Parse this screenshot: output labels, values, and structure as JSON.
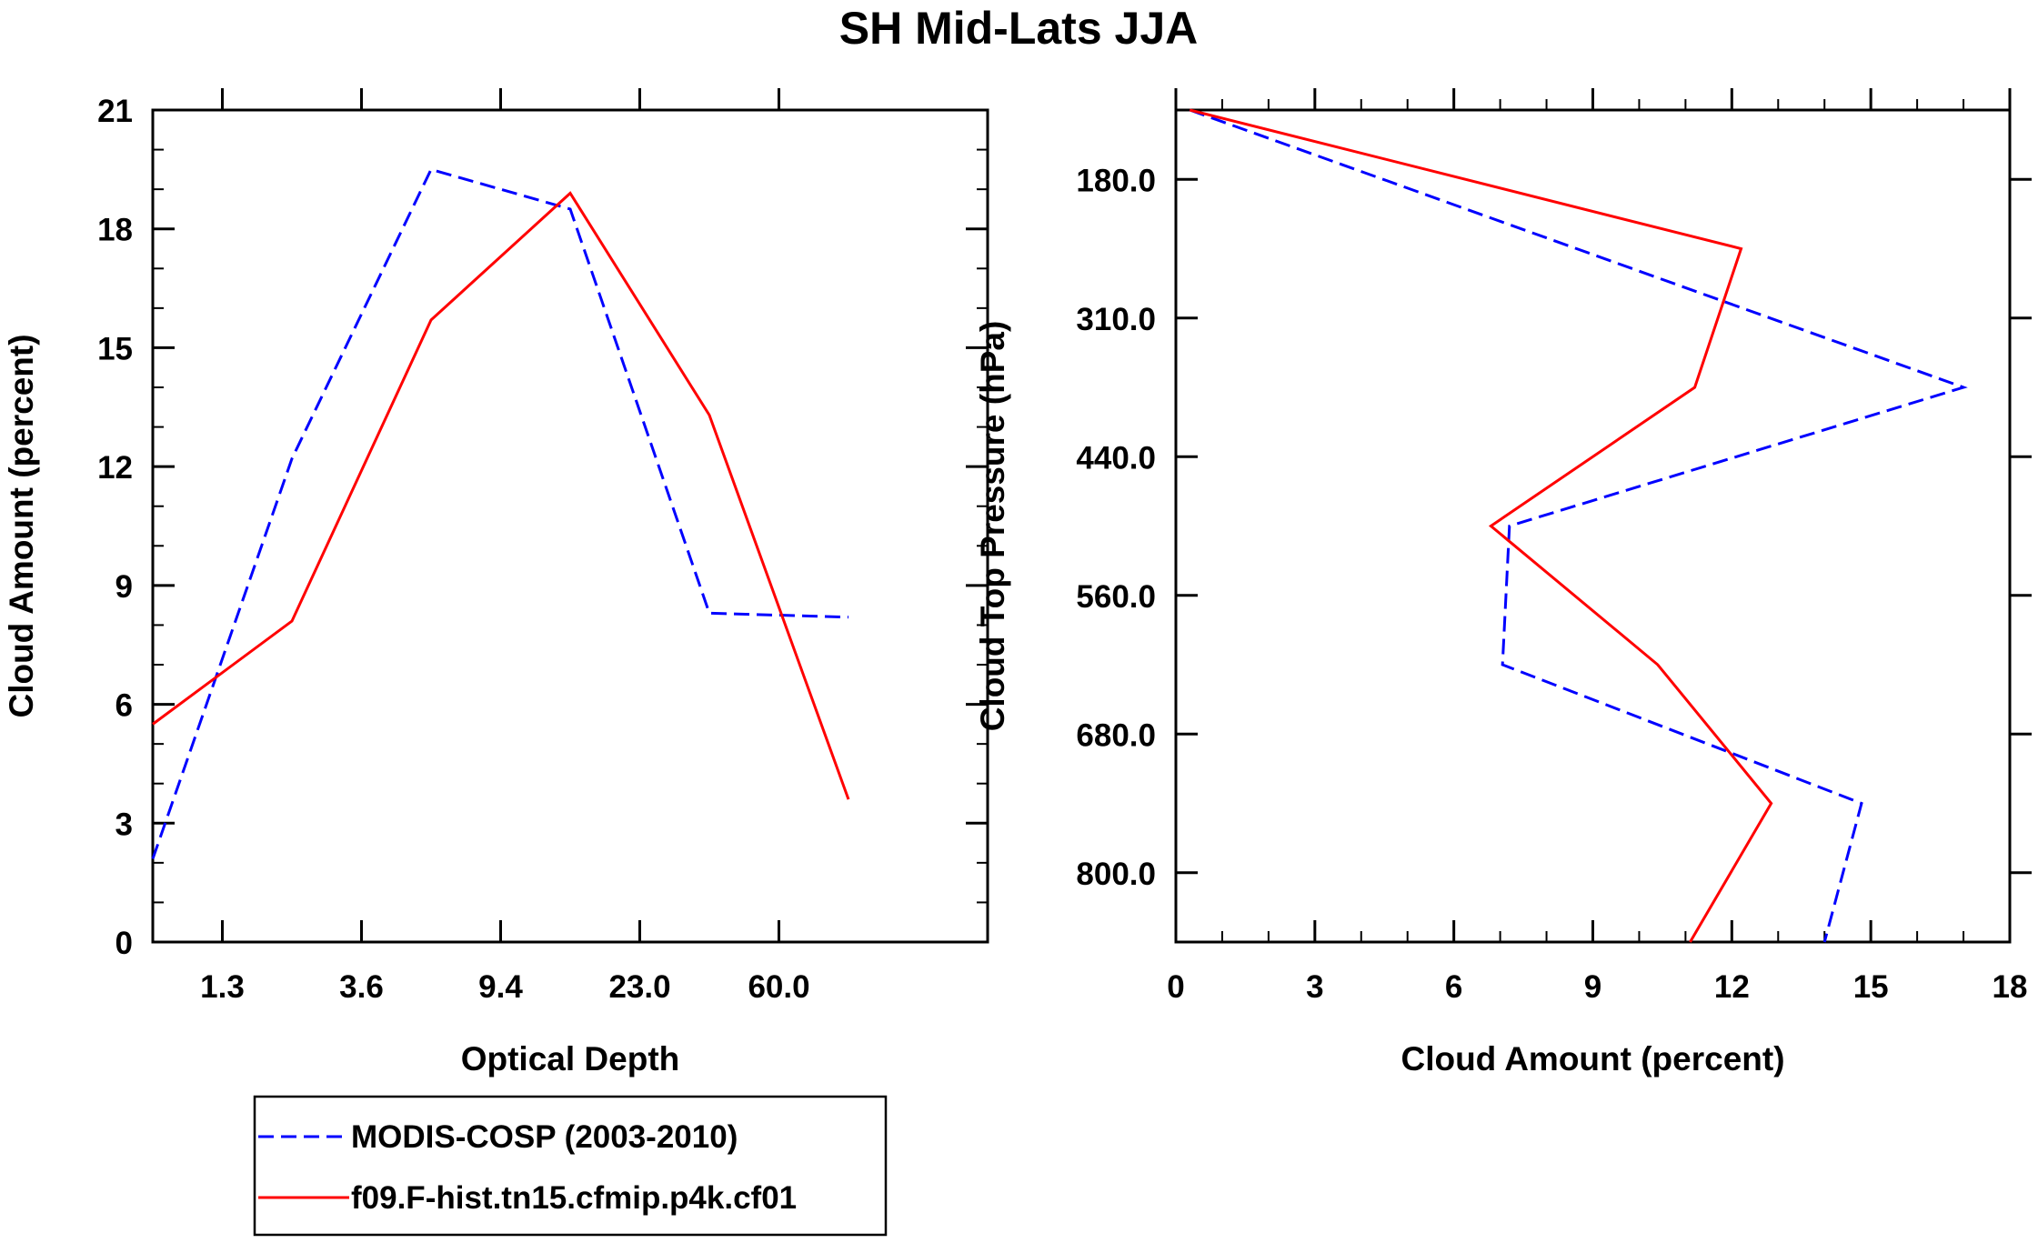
{
  "title": "SH Mid-Lats JJA",
  "legend": {
    "entries": [
      {
        "label": "MODIS-COSP (2003-2010)",
        "color": "#0000ff",
        "dash": true
      },
      {
        "label": "f09.F-hist.tn15.cfmip.p4k.cf01",
        "color": "#ff0000",
        "dash": false
      }
    ]
  },
  "colors": {
    "obs": "#0000ff",
    "model": "#ff0000",
    "axis": "#000000"
  },
  "chart_data": [
    {
      "type": "line",
      "xlabel": "Optical Depth",
      "ylabel": "Cloud Amount (percent)",
      "ylim": [
        0,
        21
      ],
      "yticks": [
        "0",
        "3",
        "6",
        "9",
        "12",
        "15",
        "18",
        "21"
      ],
      "xtick_labels": [
        "1.3",
        "3.6",
        "9.4",
        "23.0",
        "60.0"
      ],
      "x_category_count": 7,
      "series": [
        {
          "name": "MODIS-COSP (2003-2010)",
          "values": [
            2.1,
            12.2,
            19.5,
            18.5,
            8.3,
            8.2,
            null
          ]
        },
        {
          "name": "f09.F-hist.tn15.cfmip.p4k.cf01",
          "values": [
            5.5,
            8.1,
            15.7,
            18.9,
            13.3,
            3.6,
            null
          ]
        }
      ]
    },
    {
      "type": "line",
      "xlabel": "Cloud Amount (percent)",
      "ylabel": "Cloud Top Pressure (hPa)",
      "xlim": [
        0,
        18
      ],
      "xticks": [
        "0",
        "3",
        "6",
        "9",
        "12",
        "15",
        "18"
      ],
      "ytick_labels": [
        "180.0",
        "310.0",
        "440.0",
        "560.0",
        "680.0",
        "800.0"
      ],
      "y_range_index": [
        0.5,
        6.5
      ],
      "series": [
        {
          "name": "MODIS-COSP (2003-2010)",
          "x": [
            0.3,
            17.0,
            7.2,
            7.05,
            14.8,
            14.0
          ],
          "y_index": [
            0.5,
            2.5,
            3.5,
            4.5,
            5.5,
            6.5
          ]
        },
        {
          "name": "f09.F-hist.tn15.cfmip.p4k.cf01",
          "x": [
            0.3,
            12.2,
            11.2,
            6.8,
            10.4,
            12.85,
            11.1
          ],
          "y_index": [
            0.5,
            1.5,
            2.5,
            3.5,
            4.5,
            5.5,
            6.5
          ]
        }
      ]
    }
  ]
}
